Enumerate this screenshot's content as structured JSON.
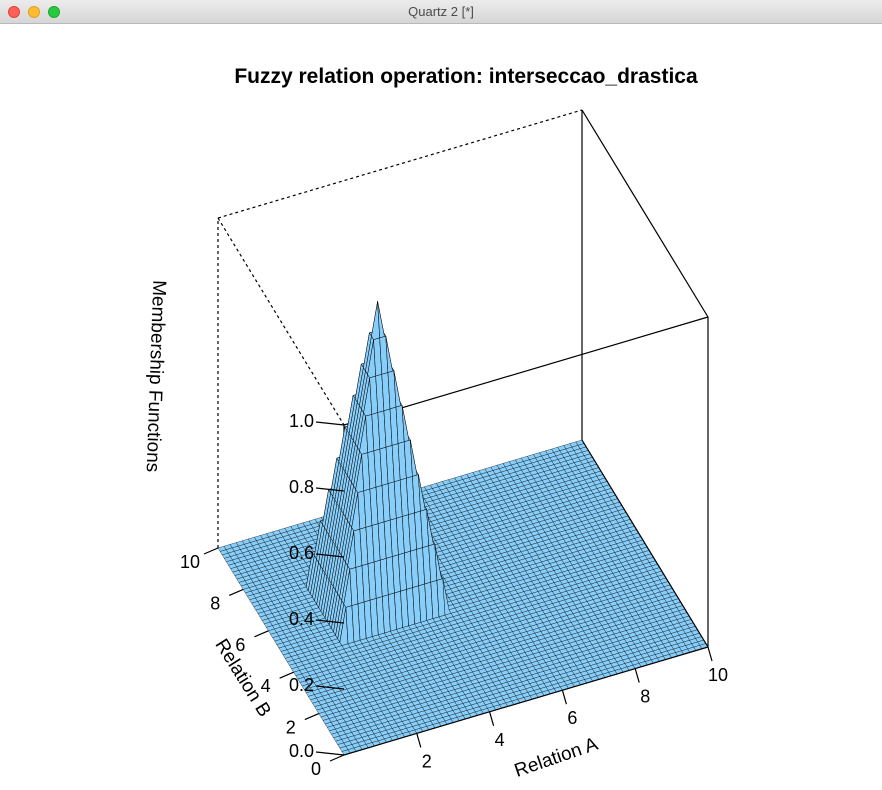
{
  "window": {
    "title": "Quartz 2 [*]"
  },
  "chart_data": {
    "type": "surface",
    "title": "Fuzzy relation operation: interseccao_drastica",
    "xlabel": "Relation A",
    "ylabel": "Relation B",
    "zlabel": "Membership Functions",
    "xlim": [
      0,
      10
    ],
    "ylim": [
      0,
      10
    ],
    "zlim": [
      0,
      1
    ],
    "x_ticks": [
      "2",
      "4",
      "6",
      "8",
      "10"
    ],
    "y_ticks": [
      "0",
      "2",
      "4",
      "6",
      "8",
      "10"
    ],
    "z_ticks": [
      "0.0",
      "0.2",
      "0.4",
      "0.6",
      "0.8",
      "1.0"
    ],
    "surface_color": "#87cefa",
    "peak": {
      "x": 3,
      "y": 6,
      "z": 0.9
    },
    "base_value": 0,
    "description_points": [
      {
        "x": 0,
        "y": 0,
        "z": 0
      },
      {
        "x": 1.5,
        "y": 6,
        "z": 0
      },
      {
        "x": 3,
        "y": 6,
        "z": 0.9
      },
      {
        "x": 4.5,
        "y": 6,
        "z": 0
      },
      {
        "x": 3,
        "y": 4.5,
        "z": 0
      },
      {
        "x": 10,
        "y": 10,
        "z": 0
      }
    ]
  }
}
